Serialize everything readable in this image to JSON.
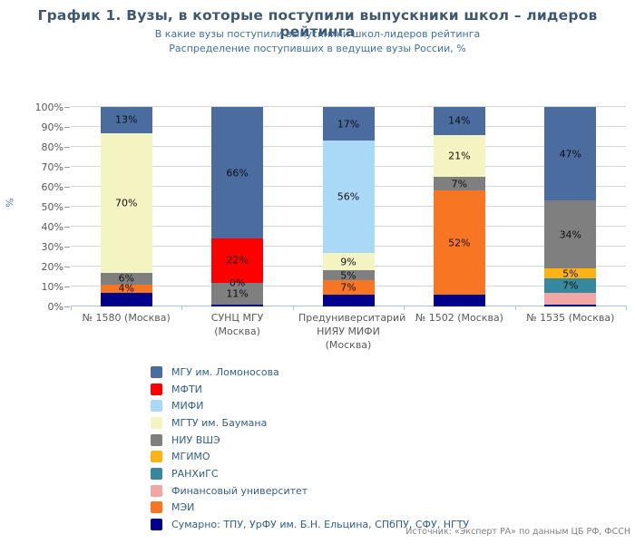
{
  "header": {
    "title": "График 1. Вузы, в которые поступили выпускники школ – лидеров рейтинга",
    "subtitle1": "В какие вузы поступили выпускники школ-лидеров рейтинга",
    "subtitle2": "Распределение поступивших в ведущие вузы России, %"
  },
  "source_note": "Источник: «Эксперт РА» по данным ЦБ РФ, ФССН",
  "chart_data": {
    "type": "bar",
    "stacked": true,
    "orientation": "vertical",
    "title": "График 1. Вузы, в которые поступили выпускники школ – лидеров рейтинга",
    "xlabel": "",
    "ylabel": "%",
    "ylim": [
      0,
      100
    ],
    "ytick_step": 10,
    "ytick_labels": [
      "0%",
      "10%",
      "20%",
      "30%",
      "40%",
      "50%",
      "60%",
      "70%",
      "80%",
      "90%",
      "100%"
    ],
    "grid": "horizontal",
    "legend_position": "bottom",
    "categories": [
      "№ 1580 (Москва)",
      "СУНЦ МГУ (Москва)",
      "Предуниверситарий НИЯУ МИФИ (Москва)",
      "№ 1502 (Москва)",
      "№ 1535 (Москва)"
    ],
    "series": [
      {
        "key": "mgu",
        "name": "МГУ им. Ломоносова",
        "color": "#4b6c9e",
        "values": [
          13,
          66,
          17,
          14,
          47
        ]
      },
      {
        "key": "mfti",
        "name": "МФТИ",
        "color": "#fe0000",
        "values": [
          0,
          22,
          0,
          0,
          0
        ]
      },
      {
        "key": "mifi",
        "name": "МИФИ",
        "color": "#a9d9f7",
        "values": [
          0,
          0,
          56,
          0,
          0
        ]
      },
      {
        "key": "mgtu",
        "name": "МГТУ им. Баумана",
        "color": "#f4f4c2",
        "values": [
          70,
          0,
          9,
          21,
          0
        ]
      },
      {
        "key": "vshe",
        "name": "НИУ ВШЭ",
        "color": "#7f7f7f",
        "values": [
          6,
          11,
          5,
          7,
          34
        ]
      },
      {
        "key": "mgimo",
        "name": "МГИМО",
        "color": "#fcb315",
        "values": [
          0,
          0,
          0,
          0,
          5
        ]
      },
      {
        "key": "ranhigs",
        "name": "РАНХиГС",
        "color": "#36889c",
        "values": [
          0,
          0,
          0,
          0,
          7
        ]
      },
      {
        "key": "finun",
        "name": "Финансовый университет",
        "color": "#f2a7a5",
        "values": [
          0,
          0,
          0,
          0,
          6
        ]
      },
      {
        "key": "mei",
        "name": "МЭИ",
        "color": "#f87623",
        "values": [
          4,
          0,
          7,
          52,
          0
        ]
      },
      {
        "key": "sum",
        "name": "Сумарно: ТПУ, УрФУ им. Б.Н. Ельцина, СПбПУ, СФУ, НГТУ",
        "color": "#00008b",
        "values": [
          7,
          1,
          6,
          6,
          1
        ]
      }
    ],
    "stacks": [
      {
        "category_index": 0,
        "segments": [
          {
            "key": "sum",
            "value": 7,
            "label": ""
          },
          {
            "key": "mei",
            "value": 4,
            "label": "4%"
          },
          {
            "key": "vshe",
            "value": 6,
            "label": "6%"
          },
          {
            "key": "mgtu",
            "value": 70,
            "label": "70%"
          },
          {
            "key": "mgu",
            "value": 13,
            "label": "13%"
          }
        ]
      },
      {
        "category_index": 1,
        "segments": [
          {
            "key": "sum",
            "value": 1,
            "label": ""
          },
          {
            "key": "vshe",
            "value": 11,
            "label": "11%"
          },
          {
            "key": "mifi",
            "value": 0,
            "label": "0%"
          },
          {
            "key": "mfti",
            "value": 22,
            "label": "22%"
          },
          {
            "key": "mgu",
            "value": 66,
            "label": "66%"
          }
        ]
      },
      {
        "category_index": 2,
        "segments": [
          {
            "key": "sum",
            "value": 6,
            "label": ""
          },
          {
            "key": "mei",
            "value": 7,
            "label": "7%"
          },
          {
            "key": "vshe",
            "value": 5,
            "label": "5%"
          },
          {
            "key": "mgtu",
            "value": 9,
            "label": "9%"
          },
          {
            "key": "mifi",
            "value": 56,
            "label": "56%"
          },
          {
            "key": "mgu",
            "value": 17,
            "label": "17%"
          }
        ]
      },
      {
        "category_index": 3,
        "segments": [
          {
            "key": "sum",
            "value": 6,
            "label": ""
          },
          {
            "key": "mei",
            "value": 52,
            "label": "52%"
          },
          {
            "key": "vshe",
            "value": 7,
            "label": "7%"
          },
          {
            "key": "mgtu",
            "value": 21,
            "label": "21%"
          },
          {
            "key": "mgu",
            "value": 14,
            "label": "14%"
          }
        ]
      },
      {
        "category_index": 4,
        "segments": [
          {
            "key": "sum",
            "value": 1,
            "label": ""
          },
          {
            "key": "finun",
            "value": 6,
            "label": ""
          },
          {
            "key": "ranhigs",
            "value": 7,
            "label": "7%"
          },
          {
            "key": "mgimo",
            "value": 5,
            "label": "5%"
          },
          {
            "key": "vshe",
            "value": 34,
            "label": "34%"
          },
          {
            "key": "mgu",
            "value": 47,
            "label": "47%"
          }
        ]
      }
    ]
  }
}
